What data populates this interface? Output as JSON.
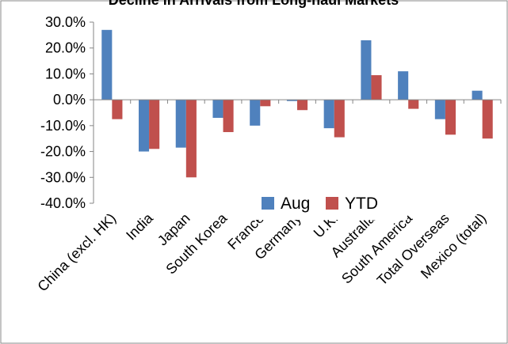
{
  "chart_data": {
    "type": "bar",
    "title": "Decline in Arrivals from Long-haul Markets",
    "categories": [
      "China (excl. HK)",
      "India",
      "Japan",
      "South Korea",
      "France",
      "Germany",
      "U.K.",
      "Australia",
      "South America",
      "Total Overseas",
      "Mexico (total)"
    ],
    "series": [
      {
        "name": "Aug",
        "values": [
          27.0,
          -20.0,
          -18.5,
          -7.0,
          -10.0,
          -0.5,
          -11.0,
          23.0,
          11.0,
          -7.5,
          3.5
        ],
        "color": "#4F81BD"
      },
      {
        "name": "YTD",
        "values": [
          -7.5,
          -19.0,
          -30.0,
          -12.5,
          -2.5,
          -4.0,
          -14.5,
          9.5,
          -3.5,
          -13.5,
          -15.0
        ],
        "color": "#C0504D"
      }
    ],
    "ylim": [
      -40,
      30
    ],
    "y_ticks": [
      "30.0%",
      "20.0%",
      "10.0%",
      "0.0%",
      "-10.0%",
      "-20.0%",
      "-30.0%",
      "-40.0%"
    ],
    "xlabel": "",
    "ylabel": "",
    "legend": {
      "placement": "center-right",
      "entries": [
        "Aug",
        "YTD"
      ]
    },
    "grid": false
  }
}
